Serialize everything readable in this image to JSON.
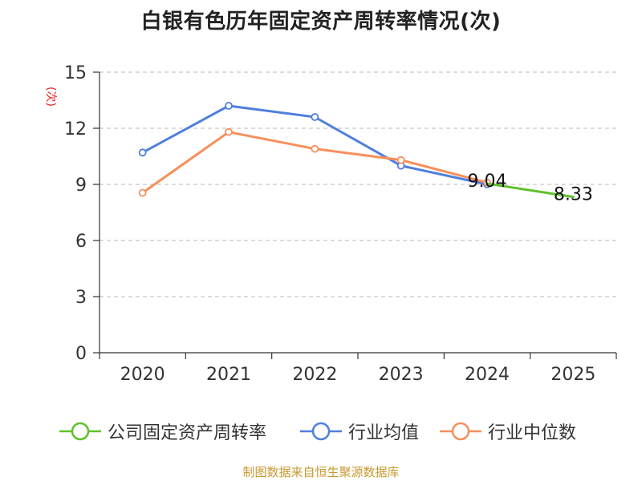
{
  "title": "白银有色历年固定资产周转率情况(次)",
  "unit_label": "(次)",
  "source": "制图数据来自恒生聚源数据库",
  "colors": {
    "company": "#5fc12d",
    "avg": "#4f7fdc",
    "median": "#f78f5b",
    "grid": "#c8c8c8",
    "axis": "#333333"
  },
  "chart_data": {
    "type": "line",
    "title": "白银有色历年固定资产周转率情况(次)",
    "ylabel": "(次)",
    "categories": [
      "2020",
      "2021",
      "2022",
      "2023",
      "2024",
      "2025"
    ],
    "ylim": [
      0,
      15
    ],
    "yticks": [
      0,
      3,
      6,
      9,
      12,
      15
    ],
    "grid": true,
    "legend_position": "bottom",
    "series": [
      {
        "key": "company",
        "name": "公司固定资产周转率",
        "values": [
          null,
          null,
          null,
          null,
          9.04,
          8.33
        ],
        "show_labels": true,
        "markers": false
      },
      {
        "key": "avg",
        "name": "行业均值",
        "values": [
          10.7,
          13.2,
          12.6,
          10.0,
          9.0,
          null
        ],
        "show_labels": false,
        "markers": true
      },
      {
        "key": "median",
        "name": "行业中位数",
        "values": [
          8.55,
          11.8,
          10.9,
          10.3,
          9.1,
          null
        ],
        "show_labels": false,
        "markers": true
      }
    ]
  }
}
